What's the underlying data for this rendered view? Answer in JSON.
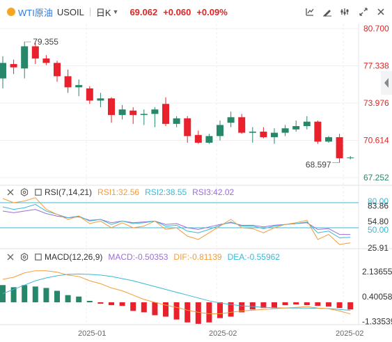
{
  "header": {
    "symbol_name": "WTI原油",
    "symbol_code": "USOIL",
    "period_label": "日K",
    "last_price": "69.062",
    "change": "+0.060",
    "change_pct": "+0.09%",
    "tools": [
      "indicator-icon",
      "draw-icon",
      "settings-icon",
      "fullscreen-icon",
      "close-icon"
    ]
  },
  "rsi": {
    "name": "RSI(7,14,21)",
    "label1": "RSI1:32.56",
    "label2": "RSI2:38.55",
    "label3": "RSI3:42.02",
    "axis_labels": [
      "80.00",
      "83.86",
      "54.80",
      "50.00",
      "25.91"
    ],
    "colors": {
      "rsi1": "#f59b3a",
      "rsi2": "#3ab9d6",
      "rsi3": "#9a6fd6"
    }
  },
  "macd": {
    "name": "MACD(12,26,9)",
    "label_macd": "MACD:-0.50353",
    "label_dif": "DIF:-0.81139",
    "label_dea": "DEA:-0.55962",
    "axis_labels": [
      "2.13655",
      "0.40058",
      "-1.33539"
    ],
    "colors": {
      "macd": "#9a6fd6",
      "dif": "#f59b3a",
      "dea": "#3ab9d6"
    }
  },
  "chart_data": {
    "type": "candlestick",
    "price_axis": {
      "labels": [
        "80.700",
        "77.338",
        "73.976",
        "70.614",
        "67.252"
      ],
      "min": 67.252,
      "max": 80.7
    },
    "x_axis_labels": [
      "2025-01",
      "2025-02",
      "2025-02"
    ],
    "annotations": {
      "high": "79.355",
      "low": "68.597"
    },
    "colors": {
      "up": "#26876b",
      "down": "#e8212c"
    },
    "candles": [
      {
        "o": 76.2,
        "h": 78.2,
        "l": 75.3,
        "c": 77.6
      },
      {
        "o": 77.5,
        "h": 77.9,
        "l": 76.6,
        "c": 77.2
      },
      {
        "o": 77.1,
        "h": 79.5,
        "l": 76.2,
        "c": 79.1
      },
      {
        "o": 79.1,
        "h": 79.4,
        "l": 77.5,
        "c": 78.0
      },
      {
        "o": 78.0,
        "h": 78.3,
        "l": 77.4,
        "c": 77.6
      },
      {
        "o": 77.6,
        "h": 77.8,
        "l": 75.9,
        "c": 76.4
      },
      {
        "o": 76.4,
        "h": 77.0,
        "l": 74.9,
        "c": 75.4
      },
      {
        "o": 75.4,
        "h": 76.1,
        "l": 74.6,
        "c": 75.6
      },
      {
        "o": 75.3,
        "h": 75.5,
        "l": 73.9,
        "c": 74.2
      },
      {
        "o": 74.2,
        "h": 74.9,
        "l": 73.6,
        "c": 74.4
      },
      {
        "o": 74.4,
        "h": 74.5,
        "l": 72.2,
        "c": 72.9
      },
      {
        "o": 72.9,
        "h": 73.8,
        "l": 72.5,
        "c": 73.4
      },
      {
        "o": 73.3,
        "h": 73.6,
        "l": 72.1,
        "c": 72.9
      },
      {
        "o": 72.9,
        "h": 73.4,
        "l": 72.0,
        "c": 73.0
      },
      {
        "o": 73.0,
        "h": 73.6,
        "l": 71.8,
        "c": 73.4
      },
      {
        "o": 73.9,
        "h": 74.5,
        "l": 71.9,
        "c": 72.1
      },
      {
        "o": 72.1,
        "h": 72.8,
        "l": 71.8,
        "c": 72.6
      },
      {
        "o": 72.6,
        "h": 72.8,
        "l": 70.4,
        "c": 71.0
      },
      {
        "o": 71.1,
        "h": 71.5,
        "l": 70.3,
        "c": 70.4
      },
      {
        "o": 70.4,
        "h": 71.2,
        "l": 70.3,
        "c": 71.0
      },
      {
        "o": 71.0,
        "h": 72.4,
        "l": 70.6,
        "c": 72.0
      },
      {
        "o": 72.2,
        "h": 73.2,
        "l": 71.8,
        "c": 72.7
      },
      {
        "o": 72.7,
        "h": 73.0,
        "l": 71.2,
        "c": 71.3
      },
      {
        "o": 71.3,
        "h": 71.8,
        "l": 70.4,
        "c": 71.4
      },
      {
        "o": 71.4,
        "h": 71.8,
        "l": 70.8,
        "c": 70.9
      },
      {
        "o": 70.9,
        "h": 71.7,
        "l": 70.3,
        "c": 71.3
      },
      {
        "o": 71.3,
        "h": 72.0,
        "l": 71.0,
        "c": 71.7
      },
      {
        "o": 71.6,
        "h": 72.4,
        "l": 71.4,
        "c": 71.9
      },
      {
        "o": 71.9,
        "h": 72.8,
        "l": 71.6,
        "c": 72.3
      },
      {
        "o": 72.3,
        "h": 72.4,
        "l": 70.3,
        "c": 70.5
      },
      {
        "o": 70.5,
        "h": 71.0,
        "l": 70.4,
        "c": 70.9
      },
      {
        "o": 70.9,
        "h": 71.2,
        "l": 68.6,
        "c": 69.0
      },
      {
        "o": 69.0,
        "h": 69.2,
        "l": 68.9,
        "c": 69.062
      }
    ],
    "rsi_series": {
      "rsi1": [
        85,
        80,
        82,
        86,
        72,
        66,
        60,
        64,
        55,
        58,
        50,
        56,
        50,
        52,
        58,
        48,
        50,
        40,
        36,
        44,
        52,
        60,
        50,
        49,
        44,
        50,
        54,
        56,
        59,
        36,
        42,
        30,
        32
      ],
      "rsi2": [
        75,
        72,
        74,
        78,
        70,
        66,
        62,
        64,
        58,
        60,
        54,
        58,
        55,
        56,
        58,
        52,
        53,
        46,
        44,
        48,
        53,
        57,
        52,
        52,
        49,
        52,
        54,
        55,
        57,
        44,
        46,
        38,
        38.5
      ],
      "rsi3": [
        70,
        68,
        70,
        72,
        67,
        64,
        62,
        63,
        59,
        60,
        56,
        58,
        56,
        57,
        58,
        54,
        55,
        50,
        48,
        51,
        54,
        56,
        53,
        53,
        51,
        53,
        54,
        55,
        56,
        48,
        49,
        42,
        42
      ]
    },
    "macd_series": {
      "dif": [
        1.6,
        1.75,
        2.05,
        2.2,
        2.2,
        2.1,
        1.9,
        1.8,
        1.5,
        1.3,
        1.0,
        0.8,
        0.5,
        0.2,
        0.0,
        -0.2,
        -0.35,
        -0.55,
        -0.7,
        -0.8,
        -0.8,
        -0.7,
        -0.6,
        -0.55,
        -0.5,
        -0.45,
        -0.4,
        -0.35,
        -0.3,
        -0.4,
        -0.45,
        -0.6,
        -0.81
      ],
      "dea": [
        0.6,
        0.9,
        1.2,
        1.5,
        1.7,
        1.85,
        1.95,
        1.97,
        1.95,
        1.9,
        1.8,
        1.65,
        1.5,
        1.3,
        1.1,
        0.9,
        0.7,
        0.5,
        0.3,
        0.1,
        -0.05,
        -0.15,
        -0.25,
        -0.3,
        -0.35,
        -0.38,
        -0.4,
        -0.4,
        -0.4,
        -0.42,
        -0.44,
        -0.5,
        -0.56
      ],
      "hist": [
        1.2,
        1.05,
        1.2,
        1.1,
        1.0,
        0.8,
        0.5,
        0.4,
        0.1,
        -0.1,
        -0.2,
        -0.25,
        -0.6,
        -0.7,
        -0.9,
        -1.0,
        -1.2,
        -1.4,
        -1.5,
        -1.4,
        -1.1,
        -1.0,
        -0.7,
        -0.5,
        -0.4,
        -0.4,
        -0.2,
        -0.15,
        -0.2,
        -0.25,
        -0.3,
        -0.4,
        -0.5
      ]
    }
  }
}
